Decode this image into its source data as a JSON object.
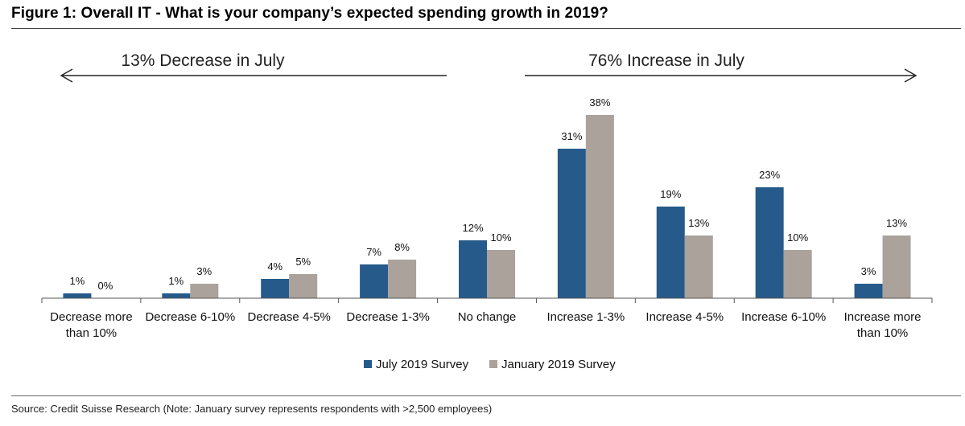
{
  "header": {
    "title": "Figure 1: Overall IT - What is your company’s expected spending growth in 2019?"
  },
  "annotations": {
    "left": "13% Decrease in July",
    "right": "76% Increase in July"
  },
  "footer": {
    "source": "Source: Credit Suisse Research (Note: January survey represents respondents with >2,500 employees)"
  },
  "chart_data": {
    "type": "bar",
    "title": "Figure 1: Overall IT - What is your company’s expected spending growth in 2019?",
    "xlabel": "",
    "ylabel": "",
    "ylim": [
      0,
      40
    ],
    "grid": false,
    "legend_position": "bottom-center",
    "categories": [
      [
        "Decrease more",
        "than 10%"
      ],
      [
        "Decrease 6-10%"
      ],
      [
        "Decrease 4-5%"
      ],
      [
        "Decrease 1-3%"
      ],
      [
        "No change"
      ],
      [
        "Increase 1-3%"
      ],
      [
        "Increase 4-5%"
      ],
      [
        "Increase 6-10%"
      ],
      [
        "Increase more",
        "than 10%"
      ]
    ],
    "series": [
      {
        "name": "July 2019 Survey",
        "color": "#255a8b",
        "values": [
          1,
          1,
          4,
          7,
          12,
          31,
          19,
          23,
          3
        ],
        "labels": [
          "1%",
          "1%",
          "4%",
          "7%",
          "12%",
          "31%",
          "19%",
          "23%",
          "3%"
        ]
      },
      {
        "name": "January 2019 Survey",
        "color": "#aaa29b",
        "values": [
          0,
          3,
          5,
          8,
          10,
          38,
          13,
          10,
          13
        ],
        "labels": [
          "0%",
          "3%",
          "5%",
          "8%",
          "10%",
          "38%",
          "13%",
          "10%",
          "13%"
        ]
      }
    ]
  }
}
